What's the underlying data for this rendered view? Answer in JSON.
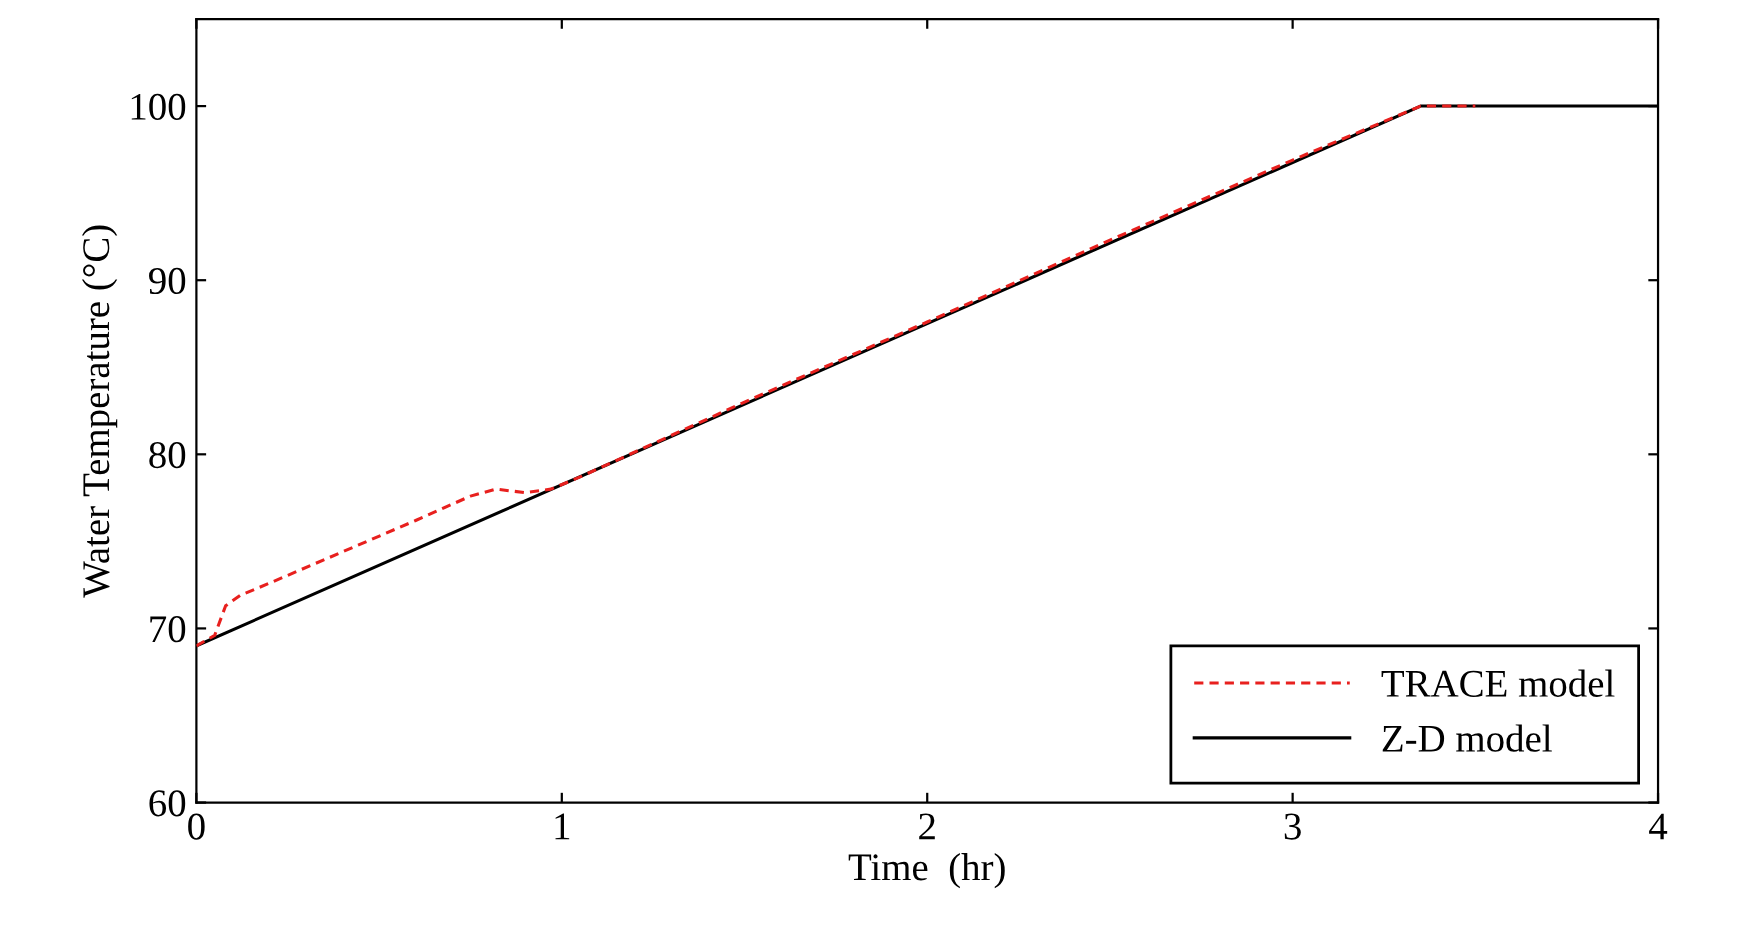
{
  "chart_data": {
    "type": "line",
    "xlabel": "Time  (hr)",
    "ylabel": "Water Temperature (°C)",
    "xlim": [
      0,
      4
    ],
    "xticks": [
      0,
      1,
      2,
      3,
      4
    ],
    "ylim": [
      60,
      105
    ],
    "yticks": [
      60,
      70,
      80,
      90,
      100
    ],
    "grid": false,
    "legend": "bottom right",
    "series": [
      {
        "name": "TRACE model",
        "color": "#e8201e",
        "line_style": "dashed",
        "x": [
          0,
          0.05,
          0.08,
          0.12,
          0.2,
          0.4,
          0.6,
          0.75,
          0.82,
          0.9,
          0.97,
          1.05,
          1.5,
          2,
          2.5,
          3,
          3.35,
          3.5
        ],
        "values": [
          69,
          69.6,
          71.3,
          71.9,
          72.6,
          74.4,
          76.2,
          77.6,
          78,
          77.8,
          78,
          78.7,
          83,
          87.6,
          92.3,
          96.9,
          100,
          100
        ]
      },
      {
        "name": "Z-D model",
        "color": "#000000",
        "line_style": "solid",
        "x": [
          0,
          3.35,
          4
        ],
        "values": [
          69,
          100,
          100
        ]
      }
    ]
  }
}
